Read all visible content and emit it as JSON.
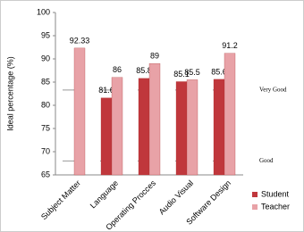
{
  "chart_data": {
    "type": "bar",
    "y_label": "Ideal percentage (%)",
    "categories": [
      "Subject Matter",
      "Language",
      "Operating Procces",
      "Audio Visual",
      "Software Design"
    ],
    "series": [
      {
        "name": "Student",
        "color": "#c0373c",
        "values": [
          null,
          81.6,
          85.8,
          85.1,
          85.6
        ]
      },
      {
        "name": "Teacher",
        "color": "#e8a2a7",
        "values": [
          92.33,
          86,
          89,
          85.5,
          91.2
        ]
      }
    ],
    "ylim": [
      65,
      100
    ],
    "yticks": [
      65,
      70,
      75,
      80,
      85,
      90,
      95,
      100
    ],
    "reference_lines": [
      {
        "value": 83.3,
        "label": "Very Good"
      },
      {
        "value": 68,
        "label": "Good"
      }
    ],
    "legend": "bottom-right"
  }
}
